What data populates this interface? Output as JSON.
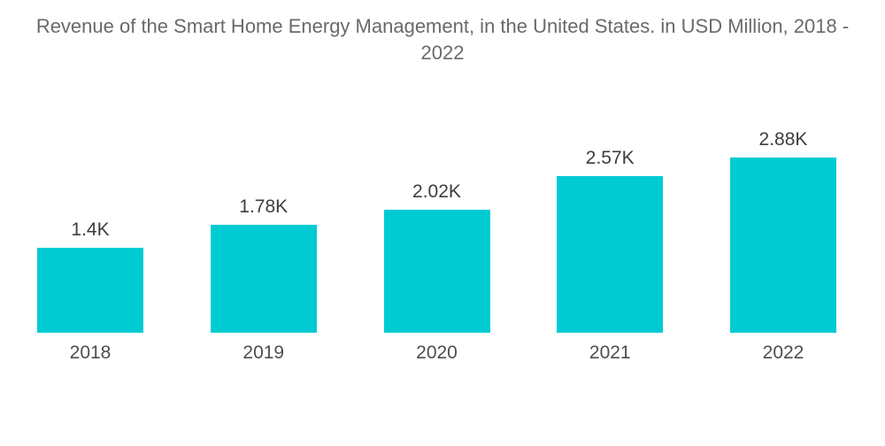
{
  "chart_data": {
    "type": "bar",
    "title": "Revenue of the Smart Home Energy Management, in the United States. in USD Million, 2018 - 2022",
    "title_lines": [
      "Revenue of the Smart Home Energy Management, in the United States. in USD Million, 2018 -",
      "2022"
    ],
    "categories": [
      "2018",
      "2019",
      "2020",
      "2021",
      "2022"
    ],
    "values": [
      1400,
      1780,
      2020,
      2570,
      2880
    ],
    "value_labels": [
      "1.4K",
      "1.78K",
      "2.02K",
      "2.57K",
      "2.88K"
    ],
    "unit": "USD Million",
    "ylim": [
      0,
      3000
    ],
    "grid": false,
    "legend": false,
    "orientation": "vertical",
    "bar_color": "#00CBD2",
    "title_color": "#6a6a6a",
    "value_label_color": "#3d3d3d",
    "category_label_color": "#4e4e4e",
    "background_color": "#ffffff"
  }
}
